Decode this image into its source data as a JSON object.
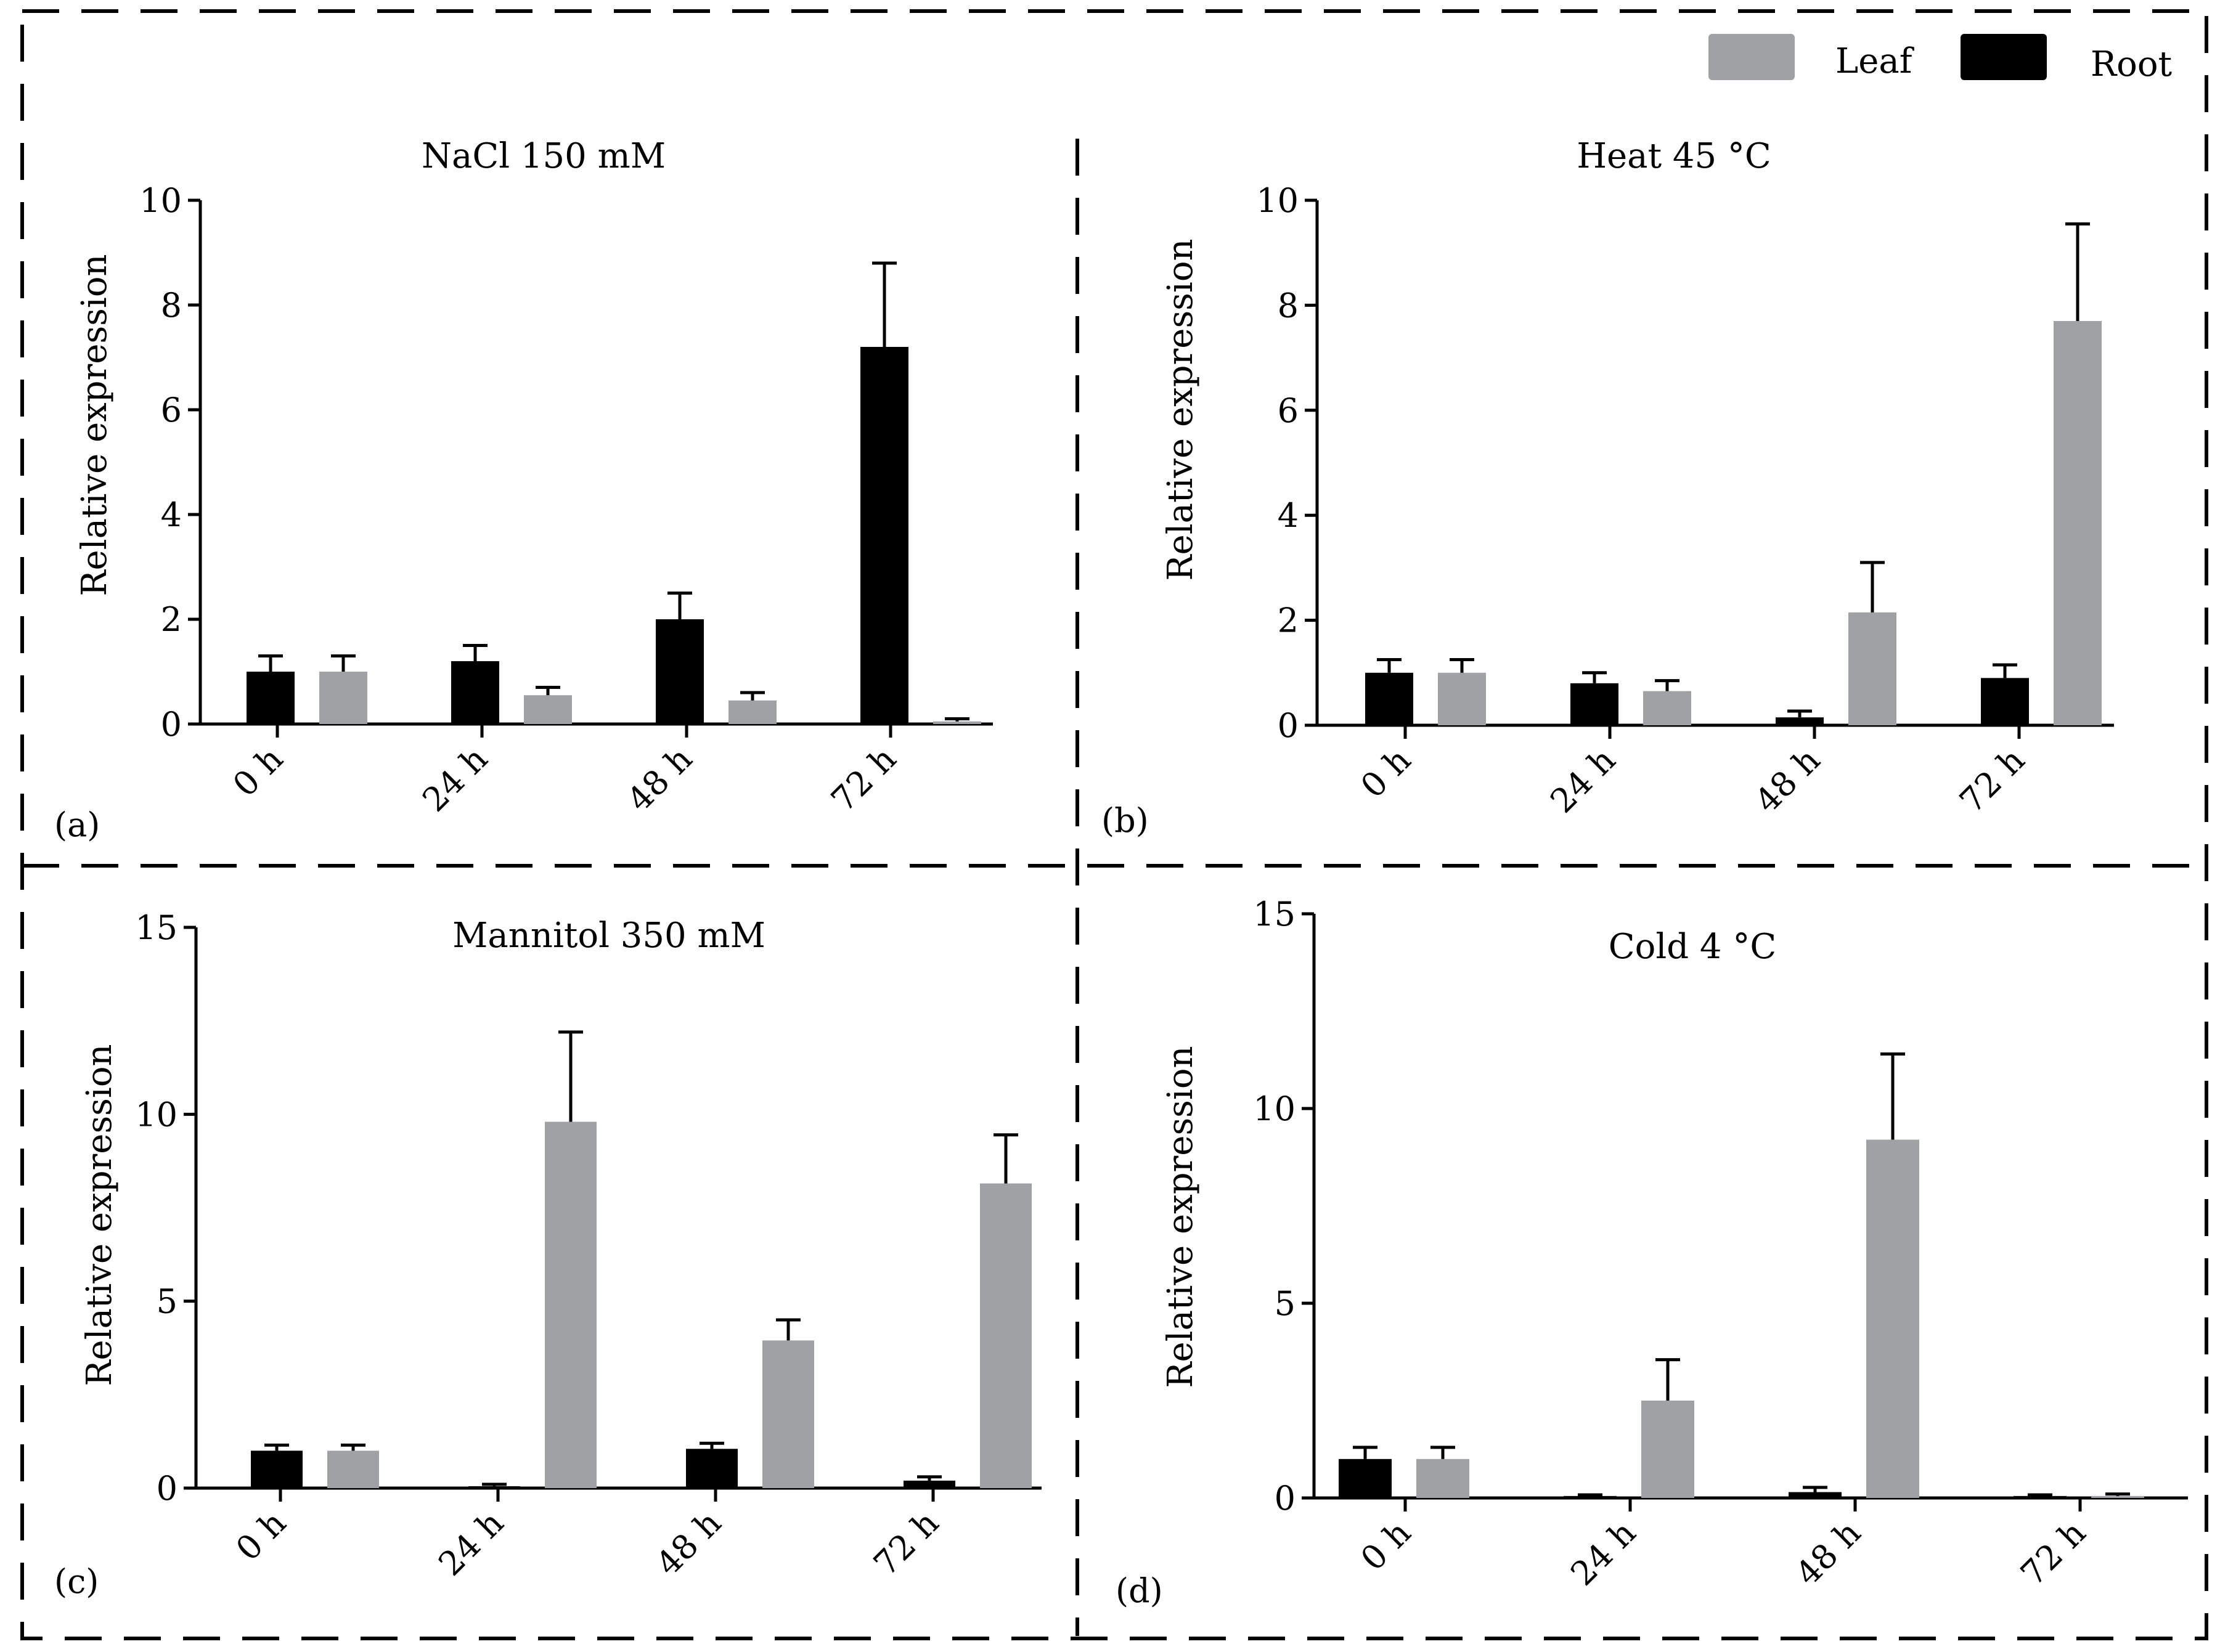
{
  "legend": [
    {
      "label": "Leaf",
      "color": "#a0a1a4"
    },
    {
      "label": "Root",
      "color": "#000000"
    }
  ],
  "chart_data": [
    {
      "type": "bar",
      "panel_label": "(a)",
      "title": "NaCl 150 mM",
      "ylabel": "Relative  expression",
      "categories": [
        "0 h",
        "24 h",
        "48 h",
        "72 h"
      ],
      "ylim": [
        0,
        10
      ],
      "yticks": [
        "0",
        "2",
        "4",
        "6",
        "8",
        "10"
      ],
      "series": [
        {
          "name": "Root",
          "values": [
            1.0,
            1.2,
            2.0,
            7.2
          ],
          "errors": [
            0.3,
            0.3,
            0.5,
            1.6
          ]
        },
        {
          "name": "Leaf",
          "values": [
            1.0,
            0.55,
            0.45,
            0.05
          ],
          "errors": [
            0.3,
            0.15,
            0.15,
            0.05
          ]
        }
      ]
    },
    {
      "type": "bar",
      "panel_label": "(b)",
      "title": "Heat 45 °C",
      "ylabel": "Relative  expression",
      "categories": [
        "0 h",
        "24 h",
        "48 h",
        "72 h"
      ],
      "ylim": [
        0,
        10
      ],
      "yticks": [
        "0",
        "2",
        "4",
        "6",
        "8",
        "10"
      ],
      "series": [
        {
          "name": "Root",
          "values": [
            1.0,
            0.8,
            0.15,
            0.9
          ],
          "errors": [
            0.25,
            0.2,
            0.12,
            0.25
          ]
        },
        {
          "name": "Leaf",
          "values": [
            1.0,
            0.65,
            2.15,
            7.7
          ],
          "errors": [
            0.25,
            0.2,
            0.95,
            1.85
          ]
        }
      ]
    },
    {
      "type": "bar",
      "panel_label": "(c)",
      "title": "Mannitol 350 mM",
      "ylabel": "Relative  expression",
      "categories": [
        "0 h",
        "24 h",
        "48 h",
        "72 h"
      ],
      "ylim": [
        0,
        15
      ],
      "yticks": [
        "0",
        "5",
        "10",
        "15"
      ],
      "series": [
        {
          "name": "Root",
          "values": [
            1.0,
            0.05,
            1.05,
            0.2
          ],
          "errors": [
            0.15,
            0.05,
            0.15,
            0.1
          ]
        },
        {
          "name": "Leaf",
          "values": [
            1.0,
            9.8,
            3.95,
            8.15
          ],
          "errors": [
            0.15,
            2.4,
            0.55,
            1.3
          ]
        }
      ]
    },
    {
      "type": "bar",
      "panel_label": "(d)",
      "title": "Cold 4 °C",
      "ylabel": "Relative  expression",
      "categories": [
        "0 h",
        "24 h",
        "48 h",
        "72 h"
      ],
      "ylim": [
        0,
        15
      ],
      "yticks": [
        "0",
        "5",
        "10",
        "15"
      ],
      "series": [
        {
          "name": "Root",
          "values": [
            1.0,
            0.05,
            0.15,
            0.05
          ],
          "errors": [
            0.3,
            0.03,
            0.12,
            0.03
          ]
        },
        {
          "name": "Leaf",
          "values": [
            1.0,
            2.5,
            9.2,
            0.05
          ],
          "errors": [
            0.3,
            1.05,
            2.2,
            0.05
          ]
        }
      ]
    }
  ]
}
